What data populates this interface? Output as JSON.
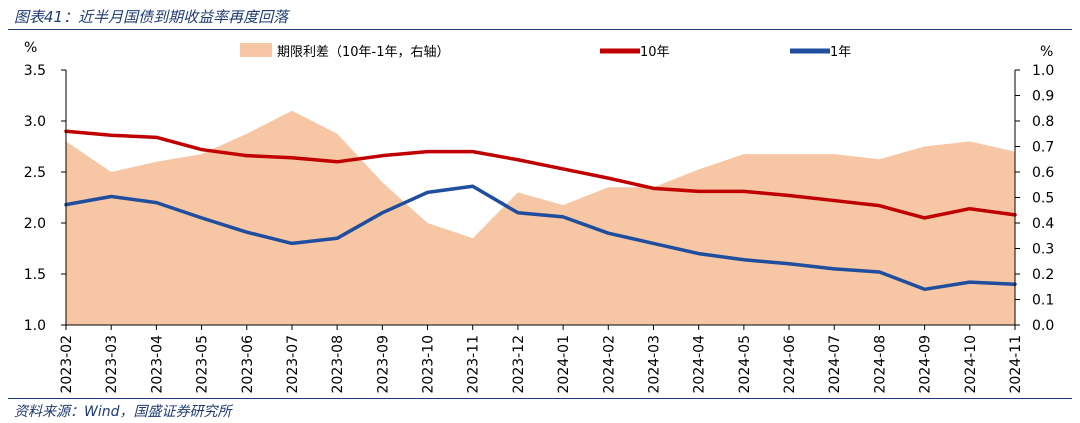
{
  "header": {
    "title": "图表41：近半月国债到期收益率再度回落"
  },
  "footer": {
    "source": "资料来源：Wind，国盛证券研究所"
  },
  "colors": {
    "spread": "#f7c6a5",
    "y10": "#c00000",
    "y1": "#1f4e9e",
    "rule": "#1f3b73"
  },
  "chart_data": {
    "type": "line",
    "x_ticks": [
      "2023-02",
      "2023-03",
      "2023-04",
      "2023-05",
      "2023-06",
      "2023-07",
      "2023-08",
      "2023-09",
      "2023-10",
      "2023-11",
      "2023-12",
      "2024-01",
      "2024-02",
      "2024-03",
      "2024-04",
      "2024-05",
      "2024-06",
      "2024-07",
      "2024-08",
      "2024-09",
      "2024-10",
      "2024-11"
    ],
    "y_left": {
      "unit": "%",
      "range": [
        1.0,
        3.5
      ],
      "ticks": [
        "1.0",
        "1.5",
        "2.0",
        "2.5",
        "3.0",
        "3.5"
      ]
    },
    "y_right": {
      "unit": "%",
      "range": [
        0.0,
        1.0
      ],
      "ticks": [
        "0.0",
        "0.1",
        "0.2",
        "0.3",
        "0.4",
        "0.5",
        "0.6",
        "0.7",
        "0.8",
        "0.9",
        "1.0"
      ]
    },
    "legend": {
      "position": "top",
      "entries": [
        "期限利差（10年-1年，右轴）",
        "10年",
        "1年"
      ]
    },
    "series": [
      {
        "name": "10年",
        "axis": "left",
        "style": "line",
        "x": [
          "2023-02",
          "2023-03",
          "2023-04",
          "2023-05",
          "2023-06",
          "2023-07",
          "2023-08",
          "2023-09",
          "2023-10",
          "2023-11",
          "2023-12",
          "2024-01",
          "2024-02",
          "2024-03",
          "2024-04",
          "2024-05",
          "2024-06",
          "2024-07",
          "2024-08",
          "2024-09",
          "2024-10",
          "2024-11"
        ],
        "values": [
          2.9,
          2.86,
          2.84,
          2.72,
          2.66,
          2.64,
          2.6,
          2.66,
          2.7,
          2.7,
          2.62,
          2.53,
          2.44,
          2.34,
          2.31,
          2.31,
          2.27,
          2.22,
          2.17,
          2.05,
          2.14,
          2.08
        ]
      },
      {
        "name": "1年",
        "axis": "left",
        "style": "line",
        "x": [
          "2023-02",
          "2023-03",
          "2023-04",
          "2023-05",
          "2023-06",
          "2023-07",
          "2023-08",
          "2023-09",
          "2023-10",
          "2023-11",
          "2023-12",
          "2024-01",
          "2024-02",
          "2024-03",
          "2024-04",
          "2024-05",
          "2024-06",
          "2024-07",
          "2024-08",
          "2024-09",
          "2024-10",
          "2024-11"
        ],
        "values": [
          2.18,
          2.26,
          2.2,
          2.05,
          1.91,
          1.8,
          1.85,
          2.1,
          2.3,
          2.36,
          2.1,
          2.06,
          1.9,
          1.8,
          1.7,
          1.64,
          1.6,
          1.55,
          1.52,
          1.35,
          1.42,
          1.4
        ]
      },
      {
        "name": "期限利差（10年-1年，右轴）",
        "axis": "right",
        "style": "area",
        "x": [
          "2023-02",
          "2023-03",
          "2023-04",
          "2023-05",
          "2023-06",
          "2023-07",
          "2023-08",
          "2023-09",
          "2023-10",
          "2023-11",
          "2023-12",
          "2024-01",
          "2024-02",
          "2024-03",
          "2024-04",
          "2024-05",
          "2024-06",
          "2024-07",
          "2024-08",
          "2024-09",
          "2024-10",
          "2024-11"
        ],
        "values": [
          0.72,
          0.6,
          0.64,
          0.67,
          0.75,
          0.84,
          0.75,
          0.56,
          0.4,
          0.34,
          0.52,
          0.47,
          0.54,
          0.54,
          0.61,
          0.67,
          0.67,
          0.67,
          0.65,
          0.7,
          0.72,
          0.68
        ]
      }
    ]
  }
}
